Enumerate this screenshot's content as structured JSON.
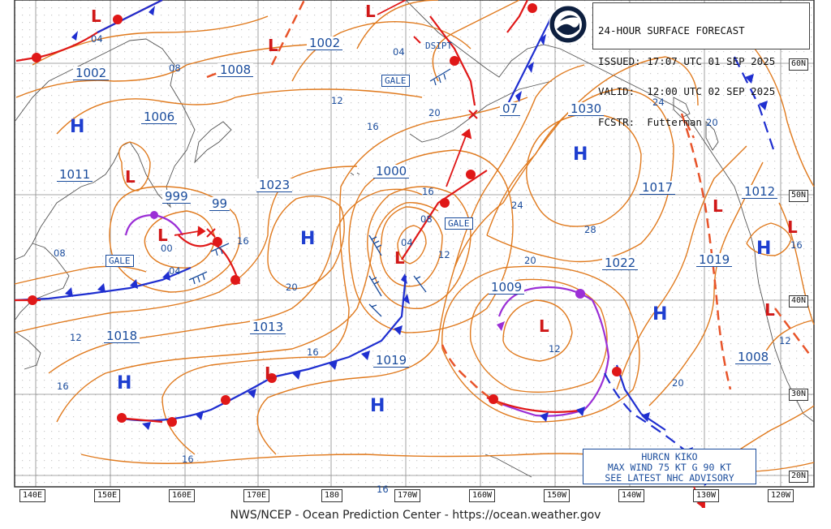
{
  "header": {
    "line1": "24-HOUR SURFACE FORECAST",
    "line2": "ISSUED: 17:07 UTC 01 SEP 2025",
    "line3": "VALID:  12:00 UTC 02 SEP 2025",
    "line4": "FCSTR:  Futterman"
  },
  "logo_text": "NOAA",
  "footer": "NWS/NCEP - Ocean Prediction Center - https://ocean.weather.gov",
  "advisory": {
    "line1": "HURCN KIKO",
    "line2": "MAX WIND 75 KT G 90 KT",
    "line3": "SEE LATEST NHC ADVISORY"
  },
  "longitudes": [
    "140E",
    "150E",
    "160E",
    "170E",
    "180",
    "170W",
    "160W",
    "150W",
    "140W",
    "130W",
    "120W"
  ],
  "latitudes": [
    "60N",
    "50N",
    "40N",
    "30N",
    "20N"
  ],
  "pressure_labels": [
    "1002",
    "1008",
    "1002",
    "1006",
    "1011",
    "999",
    "99",
    "1023",
    "1000",
    "07",
    "1030",
    "1017",
    "1012",
    "1009",
    "1022",
    "1019",
    "1018",
    "1013",
    "1019",
    "1008"
  ],
  "isobar_labels": [
    "04",
    "08",
    "04",
    "12",
    "16",
    "20",
    "24",
    "28",
    "20",
    "24",
    "20",
    "16",
    "12",
    "08",
    "04",
    "00",
    "16",
    "20",
    "12",
    "16",
    "16",
    "16",
    "16",
    "12",
    "20",
    "08",
    "04",
    "12",
    "16"
  ],
  "high_symbol": "H",
  "low_symbol": "L",
  "gale_label": "GALE",
  "dsipt_label": "DSIPT",
  "colors": {
    "isobar": "#e07a1e",
    "cold_front": "#1f2fd0",
    "warm_front": "#e01818",
    "occluded": "#9b2fd6",
    "trough": "#e8542a",
    "label_blue": "#1a4c9c",
    "coast": "#555555",
    "grid": "#8a8a8a"
  }
}
